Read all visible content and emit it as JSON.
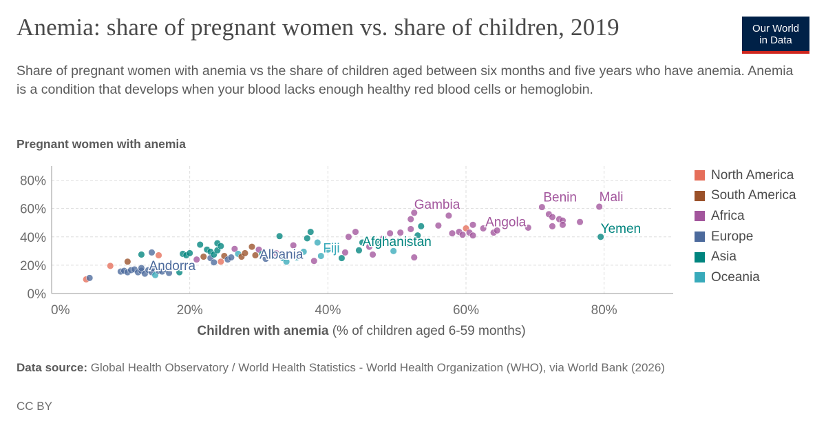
{
  "header": {
    "title": "Anemia: share of pregnant women vs. share of children, 2019",
    "subtitle": "Share of pregnant women with anemia vs the share of children aged between six months and five years who have anemia. Anemia is a condition that develops when your blood lacks enough healthy red blood cells or hemoglobin.",
    "logo_line1": "Our World",
    "logo_line2": "in Data"
  },
  "footer": {
    "source_label": "Data source:",
    "source_text": "Global Health Observatory / World Health Statistics - World Health Organization (WHO), via World Bank (2026)",
    "license": "CC BY"
  },
  "chart_data": {
    "type": "scatter",
    "title": "Anemia: share of pregnant women vs. share of children, 2019",
    "xlabel_bold": "Children with anemia",
    "xlabel_rest": "(% of children aged 6-59 months)",
    "ylabel": "Pregnant women with anemia",
    "xlim": [
      0,
      90
    ],
    "ylim": [
      0,
      90
    ],
    "x_ticks": [
      0,
      20,
      40,
      60,
      80
    ],
    "y_ticks": [
      0,
      20,
      40,
      60,
      80
    ],
    "x_tick_labels": [
      "0%",
      "20%",
      "40%",
      "60%",
      "80%"
    ],
    "y_tick_labels": [
      "0%",
      "20%",
      "40%",
      "60%",
      "80%"
    ],
    "grid": true,
    "legend_position": "right",
    "legend": [
      {
        "name": "North America",
        "color": "#e56e5a"
      },
      {
        "name": "South America",
        "color": "#9a5129"
      },
      {
        "name": "Africa",
        "color": "#a2559c"
      },
      {
        "name": "Europe",
        "color": "#4c6a9c"
      },
      {
        "name": "Asia",
        "color": "#00847e"
      },
      {
        "name": "Oceania",
        "color": "#38aaba"
      }
    ],
    "label_colors": {
      "North America": "#e56e5a",
      "South America": "#883039",
      "Africa": "#a2559c",
      "Europe": "#4c6a9c",
      "Asia": "#00847e",
      "Oceania": "#38aaba"
    },
    "labels": [
      {
        "text": "Gambia",
        "x": 52.5,
        "y": 57.0,
        "region": "Africa"
      },
      {
        "text": "Benin",
        "x": 71.0,
        "y": 61.0,
        "region": "Africa"
      },
      {
        "text": "Mali",
        "x": 79.3,
        "y": 61.3,
        "region": "Africa"
      },
      {
        "text": "Angola",
        "x": 62.5,
        "y": 46.0,
        "region": "Africa"
      },
      {
        "text": "Yemen",
        "x": 79.5,
        "y": 40.0,
        "region": "Asia"
      },
      {
        "text": "Afghanistan",
        "x": 44.5,
        "y": 35.0,
        "region": "Asia"
      },
      {
        "text": "Fiji",
        "x": 39.8,
        "y": 30.5,
        "region": "Oceania"
      },
      {
        "text": "Albania",
        "x": 30.5,
        "y": 26.5,
        "region": "Europe"
      },
      {
        "text": "Andorra",
        "x": 14.5,
        "y": 18.0,
        "region": "Europe"
      }
    ],
    "points": [
      {
        "x": 5.0,
        "y": 10.0,
        "region": "North America"
      },
      {
        "x": 5.5,
        "y": 11.0,
        "region": "Europe"
      },
      {
        "x": 8.5,
        "y": 19.5,
        "region": "North America"
      },
      {
        "x": 11.0,
        "y": 22.5,
        "region": "South America"
      },
      {
        "x": 10.0,
        "y": 15.5,
        "region": "Europe"
      },
      {
        "x": 10.5,
        "y": 16.0,
        "region": "Europe"
      },
      {
        "x": 11.0,
        "y": 15.0,
        "region": "Europe"
      },
      {
        "x": 11.5,
        "y": 16.5,
        "region": "Europe"
      },
      {
        "x": 12.0,
        "y": 17.0,
        "region": "Europe"
      },
      {
        "x": 12.5,
        "y": 15.0,
        "region": "Europe"
      },
      {
        "x": 13.0,
        "y": 16.0,
        "region": "Europe"
      },
      {
        "x": 13.0,
        "y": 18.0,
        "region": "Europe"
      },
      {
        "x": 13.5,
        "y": 14.0,
        "region": "Europe"
      },
      {
        "x": 14.0,
        "y": 16.5,
        "region": "Europe"
      },
      {
        "x": 14.5,
        "y": 15.0,
        "region": "Europe"
      },
      {
        "x": 14.5,
        "y": 17.5,
        "region": "Europe"
      },
      {
        "x": 15.0,
        "y": 13.0,
        "region": "Oceania"
      },
      {
        "x": 15.5,
        "y": 16.0,
        "region": "Europe"
      },
      {
        "x": 16.0,
        "y": 15.5,
        "region": "Europe"
      },
      {
        "x": 16.5,
        "y": 17.0,
        "region": "Europe"
      },
      {
        "x": 17.0,
        "y": 14.5,
        "region": "Europe"
      },
      {
        "x": 13.0,
        "y": 27.5,
        "region": "Asia"
      },
      {
        "x": 14.5,
        "y": 29.0,
        "region": "Europe"
      },
      {
        "x": 15.5,
        "y": 27.0,
        "region": "North America"
      },
      {
        "x": 18.5,
        "y": 15.0,
        "region": "Asia"
      },
      {
        "x": 19.0,
        "y": 28.0,
        "region": "Asia"
      },
      {
        "x": 19.5,
        "y": 27.0,
        "region": "Asia"
      },
      {
        "x": 20.0,
        "y": 28.5,
        "region": "Asia"
      },
      {
        "x": 21.5,
        "y": 34.5,
        "region": "Asia"
      },
      {
        "x": 21.0,
        "y": 24.0,
        "region": "Africa"
      },
      {
        "x": 22.0,
        "y": 26.0,
        "region": "South America"
      },
      {
        "x": 22.5,
        "y": 31.0,
        "region": "Asia"
      },
      {
        "x": 23.0,
        "y": 29.5,
        "region": "Asia"
      },
      {
        "x": 23.0,
        "y": 25.0,
        "region": "Europe"
      },
      {
        "x": 23.5,
        "y": 27.5,
        "region": "Asia"
      },
      {
        "x": 23.5,
        "y": 22.0,
        "region": "Europe"
      },
      {
        "x": 24.0,
        "y": 35.5,
        "region": "Asia"
      },
      {
        "x": 24.0,
        "y": 30.5,
        "region": "Asia"
      },
      {
        "x": 24.5,
        "y": 33.5,
        "region": "Asia"
      },
      {
        "x": 24.5,
        "y": 22.5,
        "region": "North America"
      },
      {
        "x": 25.0,
        "y": 26.5,
        "region": "South America"
      },
      {
        "x": 25.5,
        "y": 24.0,
        "region": "Europe"
      },
      {
        "x": 26.0,
        "y": 25.5,
        "region": "Europe"
      },
      {
        "x": 26.5,
        "y": 31.5,
        "region": "Africa"
      },
      {
        "x": 27.0,
        "y": 28.0,
        "region": "Oceania"
      },
      {
        "x": 27.5,
        "y": 26.0,
        "region": "South America"
      },
      {
        "x": 28.0,
        "y": 28.5,
        "region": "South America"
      },
      {
        "x": 29.0,
        "y": 33.0,
        "region": "South America"
      },
      {
        "x": 29.5,
        "y": 27.0,
        "region": "South America"
      },
      {
        "x": 30.0,
        "y": 31.0,
        "region": "Africa"
      },
      {
        "x": 30.5,
        "y": 28.0,
        "region": "Asia"
      },
      {
        "x": 31.0,
        "y": 24.5,
        "region": "Europe"
      },
      {
        "x": 32.5,
        "y": 28.5,
        "region": "Africa"
      },
      {
        "x": 33.0,
        "y": 40.5,
        "region": "Asia"
      },
      {
        "x": 33.5,
        "y": 25.0,
        "region": "Oceania"
      },
      {
        "x": 34.0,
        "y": 22.5,
        "region": "Oceania"
      },
      {
        "x": 35.0,
        "y": 34.0,
        "region": "Africa"
      },
      {
        "x": 35.5,
        "y": 25.5,
        "region": "Oceania"
      },
      {
        "x": 36.5,
        "y": 29.5,
        "region": "Oceania"
      },
      {
        "x": 37.0,
        "y": 39.0,
        "region": "Asia"
      },
      {
        "x": 37.5,
        "y": 43.5,
        "region": "Asia"
      },
      {
        "x": 38.0,
        "y": 23.0,
        "region": "Africa"
      },
      {
        "x": 38.5,
        "y": 36.0,
        "region": "Oceania"
      },
      {
        "x": 39.0,
        "y": 26.5,
        "region": "Oceania"
      },
      {
        "x": 40.0,
        "y": 31.0,
        "region": "Oceania"
      },
      {
        "x": 41.0,
        "y": 33.5,
        "region": "Africa"
      },
      {
        "x": 42.0,
        "y": 25.0,
        "region": "Asia"
      },
      {
        "x": 42.5,
        "y": 29.0,
        "region": "Africa"
      },
      {
        "x": 43.0,
        "y": 40.0,
        "region": "Africa"
      },
      {
        "x": 44.0,
        "y": 43.5,
        "region": "Africa"
      },
      {
        "x": 44.5,
        "y": 30.5,
        "region": "Asia"
      },
      {
        "x": 45.0,
        "y": 36.0,
        "region": "Asia"
      },
      {
        "x": 46.0,
        "y": 33.0,
        "region": "Africa"
      },
      {
        "x": 46.5,
        "y": 27.5,
        "region": "Africa"
      },
      {
        "x": 47.0,
        "y": 37.0,
        "region": "Asia"
      },
      {
        "x": 48.0,
        "y": 39.0,
        "region": "Africa"
      },
      {
        "x": 49.0,
        "y": 42.5,
        "region": "Africa"
      },
      {
        "x": 49.5,
        "y": 30.0,
        "region": "Oceania"
      },
      {
        "x": 50.5,
        "y": 43.0,
        "region": "Africa"
      },
      {
        "x": 51.5,
        "y": 35.0,
        "region": "Africa"
      },
      {
        "x": 52.0,
        "y": 45.5,
        "region": "Africa"
      },
      {
        "x": 52.0,
        "y": 52.5,
        "region": "Africa"
      },
      {
        "x": 52.5,
        "y": 57.0,
        "region": "Africa"
      },
      {
        "x": 52.5,
        "y": 25.5,
        "region": "Africa"
      },
      {
        "x": 53.0,
        "y": 41.0,
        "region": "Asia"
      },
      {
        "x": 53.5,
        "y": 47.5,
        "region": "Asia"
      },
      {
        "x": 56.0,
        "y": 48.0,
        "region": "Africa"
      },
      {
        "x": 57.5,
        "y": 55.0,
        "region": "Africa"
      },
      {
        "x": 58.0,
        "y": 42.5,
        "region": "Africa"
      },
      {
        "x": 59.0,
        "y": 43.5,
        "region": "Africa"
      },
      {
        "x": 59.5,
        "y": 41.5,
        "region": "Africa"
      },
      {
        "x": 60.0,
        "y": 46.0,
        "region": "North America"
      },
      {
        "x": 60.5,
        "y": 43.0,
        "region": "Africa"
      },
      {
        "x": 61.0,
        "y": 41.0,
        "region": "Africa"
      },
      {
        "x": 61.0,
        "y": 48.5,
        "region": "Africa"
      },
      {
        "x": 62.5,
        "y": 46.0,
        "region": "Africa"
      },
      {
        "x": 64.0,
        "y": 43.0,
        "region": "Africa"
      },
      {
        "x": 64.5,
        "y": 44.5,
        "region": "Africa"
      },
      {
        "x": 69.0,
        "y": 46.5,
        "region": "Africa"
      },
      {
        "x": 71.0,
        "y": 61.0,
        "region": "Africa"
      },
      {
        "x": 72.0,
        "y": 56.0,
        "region": "Africa"
      },
      {
        "x": 72.5,
        "y": 54.0,
        "region": "Africa"
      },
      {
        "x": 72.5,
        "y": 47.5,
        "region": "Africa"
      },
      {
        "x": 73.5,
        "y": 52.5,
        "region": "Africa"
      },
      {
        "x": 74.0,
        "y": 51.5,
        "region": "Africa"
      },
      {
        "x": 74.0,
        "y": 48.5,
        "region": "Africa"
      },
      {
        "x": 76.5,
        "y": 50.5,
        "region": "Africa"
      },
      {
        "x": 79.3,
        "y": 61.3,
        "region": "Africa"
      },
      {
        "x": 79.5,
        "y": 40.0,
        "region": "Asia"
      }
    ]
  }
}
